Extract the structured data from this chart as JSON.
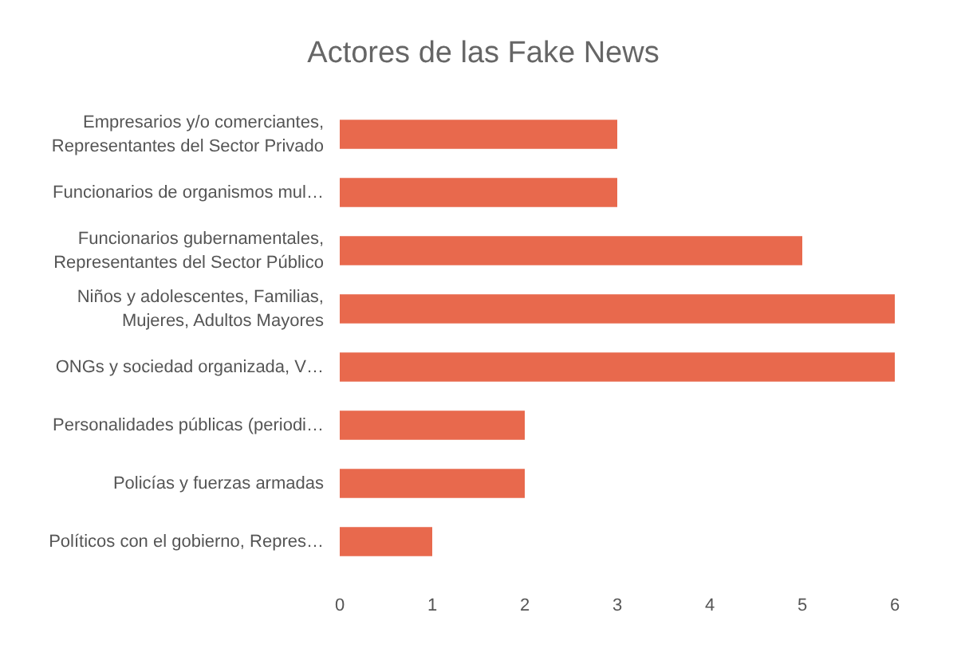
{
  "chart_data": {
    "type": "bar",
    "orientation": "horizontal",
    "title": "Actores de las Fake News",
    "categories": [
      "Empresarios y/o comerciantes,\nRepresentantes del Sector Privado",
      "Funcionarios de organismos mul…",
      "Funcionarios gubernamentales,\nRepresentantes del Sector Público",
      "Niños y adolescentes, Familias,\nMujeres, Adultos Mayores",
      "ONGs y sociedad organizada, V…",
      "Personalidades públicas (periodi…",
      "Policías y fuerzas armadas",
      "Políticos con el gobierno, Repres…"
    ],
    "values": [
      3,
      3,
      5,
      6,
      6,
      2,
      2,
      1
    ],
    "color": "#e8694d",
    "xlim": [
      0,
      6
    ],
    "xticks": [
      0,
      1,
      2,
      3,
      4,
      5,
      6
    ],
    "grid": false
  }
}
